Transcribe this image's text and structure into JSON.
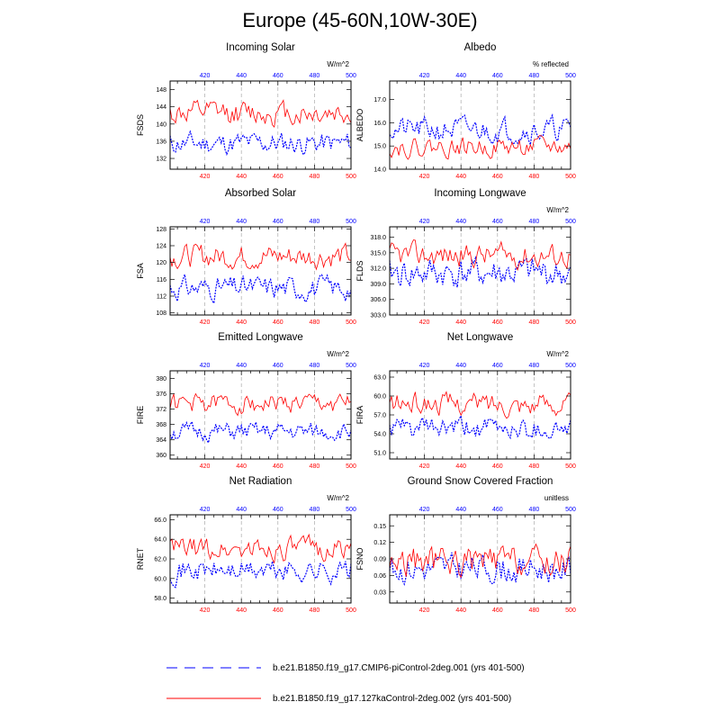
{
  "page_title": "Europe (45-60N,10W-30E)",
  "colors": {
    "series_a": "#0000ff",
    "series_b": "#ff0000",
    "dash_line": "#aaaaaa",
    "axis": "#000000"
  },
  "legend": [
    {
      "label": "b.e21.B1850.f19_g17.CMIP6-piControl-2deg.001 (yrs 401-500)",
      "color": "#0000ff",
      "style": "dashed"
    },
    {
      "label": "b.e21.B1850.f19_g17.127kaControl-2deg.002 (yrs 401-500)",
      "color": "#ff0000",
      "style": "solid"
    }
  ],
  "chart_data": [
    {
      "type": "line",
      "title": "Incoming Solar",
      "ylabel": "FSDS",
      "units": "W/m^2",
      "xlim": [
        401,
        500
      ],
      "ylim": [
        129.5,
        150
      ],
      "yticks": [
        132,
        136,
        140,
        144,
        148
      ],
      "ytick_decimals": 0,
      "xticks": [
        420,
        440,
        460,
        480,
        500
      ],
      "series": [
        {
          "base": 135.5,
          "amp": 2.2,
          "seed": 11
        },
        {
          "base": 142.5,
          "amp": 2.4,
          "seed": 12
        }
      ]
    },
    {
      "type": "line",
      "title": "Albedo",
      "ylabel": "ALBEDO",
      "units": "% reflected",
      "xlim": [
        401,
        500
      ],
      "ylim": [
        14.0,
        17.8
      ],
      "yticks": [
        14.0,
        15.0,
        16.0,
        17.0
      ],
      "ytick_decimals": 1,
      "xticks": [
        420,
        440,
        460,
        480,
        500
      ],
      "series": [
        {
          "base": 15.7,
          "amp": 0.45,
          "seed": 21
        },
        {
          "base": 14.95,
          "amp": 0.35,
          "seed": 22
        }
      ]
    },
    {
      "type": "line",
      "title": "Absorbed Solar",
      "ylabel": "FSA",
      "units": "",
      "xlim": [
        401,
        500
      ],
      "ylim": [
        107.5,
        128.5
      ],
      "yticks": [
        108,
        112,
        116,
        120,
        124,
        128
      ],
      "ytick_decimals": 0,
      "xticks": [
        420,
        440,
        460,
        480,
        500
      ],
      "series": [
        {
          "base": 114.0,
          "amp": 2.4,
          "seed": 31
        },
        {
          "base": 121.5,
          "amp": 2.4,
          "seed": 32
        }
      ]
    },
    {
      "type": "line",
      "title": "Incoming Longwave",
      "ylabel": "FLDS",
      "units": "W/m^2",
      "xlim": [
        401,
        500
      ],
      "ylim": [
        303.0,
        320.0
      ],
      "yticks": [
        303.0,
        306.0,
        309.0,
        312.0,
        315.0,
        318.0
      ],
      "ytick_decimals": 1,
      "xticks": [
        420,
        440,
        460,
        480,
        500
      ],
      "series": [
        {
          "base": 311.0,
          "amp": 2.6,
          "seed": 41
        },
        {
          "base": 314.5,
          "amp": 2.0,
          "seed": 42
        }
      ]
    },
    {
      "type": "line",
      "title": "Emitted Longwave",
      "ylabel": "FIRE",
      "units": "W/m^2",
      "xlim": [
        401,
        500
      ],
      "ylim": [
        359,
        382
      ],
      "yticks": [
        360,
        364,
        368,
        372,
        376,
        380
      ],
      "ytick_decimals": 0,
      "xticks": [
        420,
        440,
        460,
        480,
        500
      ],
      "series": [
        {
          "base": 366.0,
          "amp": 2.0,
          "seed": 51
        },
        {
          "base": 373.5,
          "amp": 2.2,
          "seed": 52
        }
      ]
    },
    {
      "type": "line",
      "title": "Net Longwave",
      "ylabel": "FIRA",
      "units": "W/m^2",
      "xlim": [
        401,
        500
      ],
      "ylim": [
        50.0,
        64.0
      ],
      "yticks": [
        51.0,
        54.0,
        57.0,
        60.0,
        63.0
      ],
      "ytick_decimals": 1,
      "xticks": [
        420,
        440,
        460,
        480,
        500
      ],
      "series": [
        {
          "base": 54.8,
          "amp": 1.5,
          "seed": 61
        },
        {
          "base": 58.8,
          "amp": 1.5,
          "seed": 62
        }
      ]
    },
    {
      "type": "line",
      "title": "Net Radiation",
      "ylabel": "RNET",
      "units": "W/m^2",
      "xlim": [
        401,
        500
      ],
      "ylim": [
        57.5,
        66.5
      ],
      "yticks": [
        58.0,
        60.0,
        62.0,
        64.0,
        66.0
      ],
      "ytick_decimals": 1,
      "xticks": [
        420,
        440,
        460,
        480,
        500
      ],
      "series": [
        {
          "base": 60.8,
          "amp": 1.0,
          "seed": 71
        },
        {
          "base": 63.0,
          "amp": 1.0,
          "seed": 72
        }
      ]
    },
    {
      "type": "line",
      "title": "Ground Snow Covered Fraction",
      "ylabel": "FSNO",
      "units": "unitless",
      "xlim": [
        401,
        500
      ],
      "ylim": [
        0.01,
        0.17
      ],
      "yticks": [
        0.03,
        0.06,
        0.09,
        0.12,
        0.15
      ],
      "ytick_decimals": 2,
      "xticks": [
        420,
        440,
        460,
        480,
        500
      ],
      "series": [
        {
          "base": 0.072,
          "amp": 0.022,
          "seed": 81
        },
        {
          "base": 0.085,
          "amp": 0.024,
          "seed": 82
        }
      ]
    }
  ]
}
